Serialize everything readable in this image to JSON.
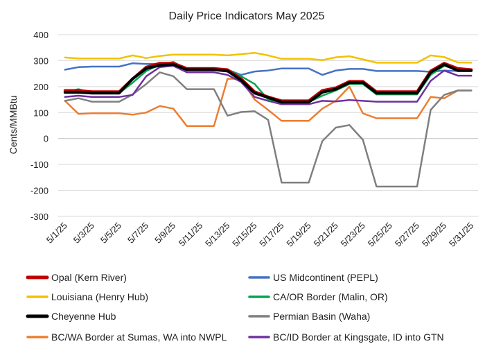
{
  "chart_data": {
    "type": "line",
    "title": "Daily Price Indicators May 2025",
    "xlabel": "",
    "ylabel": "Cents/MMBtu",
    "ylim": [
      -300,
      400
    ],
    "yticks": [
      400,
      300,
      200,
      100,
      0,
      -100,
      -200,
      -300
    ],
    "grid": true,
    "legend_position": "bottom",
    "x": [
      "5/1/25",
      "5/2/25",
      "5/3/25",
      "5/4/25",
      "5/5/25",
      "5/6/25",
      "5/7/25",
      "5/8/25",
      "5/9/25",
      "5/10/25",
      "5/11/25",
      "5/12/25",
      "5/13/25",
      "5/14/25",
      "5/15/25",
      "5/16/25",
      "5/17/25",
      "5/18/25",
      "5/19/25",
      "5/20/25",
      "5/21/25",
      "5/22/25",
      "5/23/25",
      "5/24/25",
      "5/25/25",
      "5/26/25",
      "5/27/25",
      "5/28/25",
      "5/29/25",
      "5/30/25",
      "5/31/25"
    ],
    "xtick_labels": [
      "5/1/25",
      "5/3/25",
      "5/5/25",
      "5/7/25",
      "5/9/25",
      "5/11/25",
      "5/13/25",
      "5/15/25",
      "5/17/25",
      "5/19/25",
      "5/21/25",
      "5/23/25",
      "5/25/25",
      "5/27/25",
      "5/29/25",
      "5/31/25"
    ],
    "series": [
      {
        "name": "Opal (Kern River)",
        "color": "#c00000",
        "width": 4,
        "values": [
          185,
          185,
          180,
          180,
          180,
          230,
          275,
          290,
          290,
          270,
          270,
          270,
          265,
          230,
          180,
          160,
          145,
          145,
          145,
          185,
          195,
          220,
          220,
          180,
          180,
          180,
          180,
          260,
          290,
          270,
          265
        ]
      },
      {
        "name": "US Midcontinent (PEPL)",
        "color": "#4472c4",
        "width": 2.5,
        "values": [
          265,
          275,
          277,
          277,
          277,
          290,
          287,
          287,
          285,
          270,
          270,
          270,
          265,
          245,
          258,
          262,
          270,
          270,
          270,
          245,
          262,
          268,
          268,
          260,
          260,
          260,
          260,
          257,
          262,
          260,
          260
        ]
      },
      {
        "name": "Louisiana (Henry Hub)",
        "color": "#f2c200",
        "width": 2.5,
        "values": [
          312,
          308,
          308,
          308,
          308,
          320,
          310,
          318,
          323,
          323,
          323,
          323,
          320,
          325,
          330,
          320,
          307,
          307,
          307,
          302,
          313,
          317,
          305,
          292,
          292,
          292,
          292,
          320,
          314,
          293,
          292
        ]
      },
      {
        "name": "CA/OR Border (Malin, OR)",
        "color": "#00a550",
        "width": 2.5,
        "values": [
          180,
          190,
          175,
          175,
          175,
          215,
          260,
          285,
          295,
          265,
          265,
          265,
          265,
          240,
          210,
          150,
          140,
          140,
          140,
          165,
          185,
          210,
          210,
          170,
          170,
          170,
          170,
          245,
          280,
          265,
          265
        ]
      },
      {
        "name": "Cheyenne Hub",
        "color": "#000000",
        "width": 4,
        "values": [
          178,
          178,
          175,
          175,
          175,
          230,
          270,
          282,
          285,
          265,
          265,
          265,
          260,
          225,
          175,
          158,
          140,
          140,
          140,
          178,
          190,
          215,
          215,
          175,
          175,
          175,
          175,
          255,
          285,
          262,
          262
        ]
      },
      {
        "name": "Permian Basin (Waha)",
        "color": "#7f7f7f",
        "width": 2.5,
        "values": [
          145,
          155,
          142,
          142,
          142,
          170,
          210,
          255,
          240,
          190,
          190,
          190,
          88,
          102,
          105,
          72,
          -170,
          -170,
          -170,
          -10,
          42,
          52,
          -5,
          -185,
          -185,
          -185,
          -185,
          110,
          168,
          185,
          185
        ]
      },
      {
        "name": "BC/WA Border at Sumas, WA into NWPL",
        "color": "#ed7d31",
        "width": 2.5,
        "values": [
          145,
          95,
          97,
          97,
          97,
          92,
          100,
          125,
          115,
          48,
          48,
          48,
          230,
          230,
          150,
          110,
          68,
          68,
          68,
          115,
          145,
          200,
          97,
          78,
          78,
          78,
          78,
          160,
          155,
          185,
          185
        ]
      },
      {
        "name": "BC/ID Border at Kingsgate, ID into GTN",
        "color": "#7030a0",
        "width": 2.5,
        "values": [
          160,
          165,
          160,
          160,
          160,
          168,
          240,
          275,
          280,
          255,
          255,
          255,
          245,
          218,
          160,
          145,
          132,
          132,
          132,
          145,
          143,
          148,
          145,
          142,
          142,
          142,
          142,
          222,
          262,
          242,
          242
        ]
      }
    ]
  }
}
